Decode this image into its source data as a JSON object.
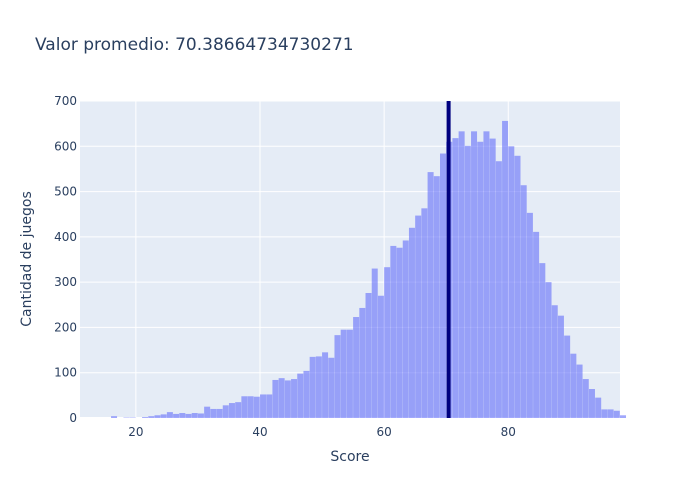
{
  "chart_data": {
    "type": "histogram",
    "title": "Valor promedio: 70.38664734730271",
    "xlabel": "Score",
    "ylabel": "Cantidad de juegos",
    "xlim": [
      11,
      98
    ],
    "ylim": [
      0,
      700
    ],
    "x_ticks": [
      20,
      40,
      60,
      80
    ],
    "y_ticks": [
      0,
      100,
      200,
      300,
      400,
      500,
      600,
      700
    ],
    "bin_width": 1,
    "bin_start": 16,
    "values": [
      4,
      0,
      1,
      1,
      0,
      2,
      4,
      6,
      8,
      13,
      9,
      11,
      9,
      11,
      10,
      25,
      20,
      20,
      28,
      33,
      35,
      48,
      48,
      47,
      52,
      52,
      84,
      88,
      83,
      86,
      98,
      104,
      135,
      136,
      145,
      133,
      183,
      195,
      195,
      223,
      243,
      276,
      330,
      270,
      333,
      380,
      376,
      392,
      420,
      447,
      463,
      543,
      534,
      584,
      610,
      618,
      633,
      601,
      633,
      610,
      633,
      617,
      567,
      656,
      600,
      579,
      514,
      453,
      411,
      342,
      300,
      249,
      226,
      182,
      142,
      118,
      86,
      64,
      45,
      19,
      19,
      16,
      6
    ],
    "mean_line": 70.38664734730271,
    "grid": true,
    "colors": {
      "bar": "#636efa",
      "mean_line": "#00007f",
      "plot_bg": "#e5ecf6"
    }
  }
}
